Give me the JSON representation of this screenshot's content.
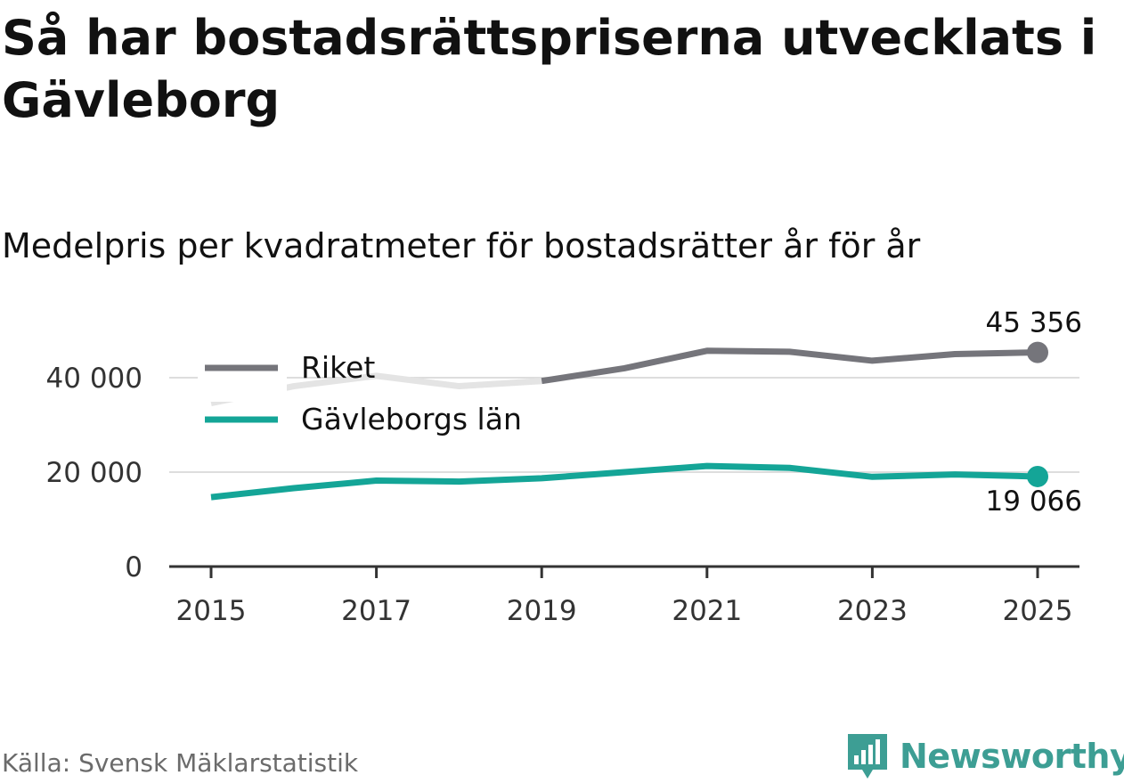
{
  "title": "Så har bostadsrättspriserna utvecklats i Gävleborg",
  "subtitle": "Medelpris per kvadratmeter för bostadsrätter år för år",
  "source": "Källa: Svensk Mäklarstatistik",
  "brand": "Newsworthy",
  "colors": {
    "riket": "#75757b",
    "riket_faded": "#e4e4e4",
    "region": "#14a597",
    "grid": "#dddddd",
    "axis": "#333333",
    "brand": "#3d9e94"
  },
  "chart_data": {
    "type": "line",
    "x": [
      2015,
      2016,
      2017,
      2018,
      2019,
      2020,
      2021,
      2022,
      2023,
      2024,
      2025
    ],
    "x_ticks": [
      2015,
      2017,
      2019,
      2021,
      2023,
      2025
    ],
    "x_tick_labels": [
      "2015",
      "2017",
      "2019",
      "2021",
      "2023",
      "2025"
    ],
    "y_ticks": [
      0,
      20000,
      40000
    ],
    "y_tick_labels": [
      "0",
      "20 000",
      "40 000"
    ],
    "ylim": [
      0,
      46000
    ],
    "series": [
      {
        "name": "Riket",
        "key": "riket",
        "values": [
          34600,
          38200,
          40400,
          38200,
          39300,
          42000,
          45700,
          45500,
          43600,
          45000,
          45356
        ],
        "faded_until": 2019,
        "end_label": "45 356"
      },
      {
        "name": "Gävleborgs län",
        "key": "region",
        "values": [
          14700,
          16600,
          18200,
          18000,
          18700,
          20000,
          21300,
          20900,
          19000,
          19500,
          19066
        ],
        "end_label": "19 066"
      }
    ],
    "legend": [
      {
        "label": "Riket",
        "key": "riket"
      },
      {
        "label": "Gävleborgs län",
        "key": "region"
      }
    ],
    "legend_position": "top-left",
    "grid": true
  }
}
